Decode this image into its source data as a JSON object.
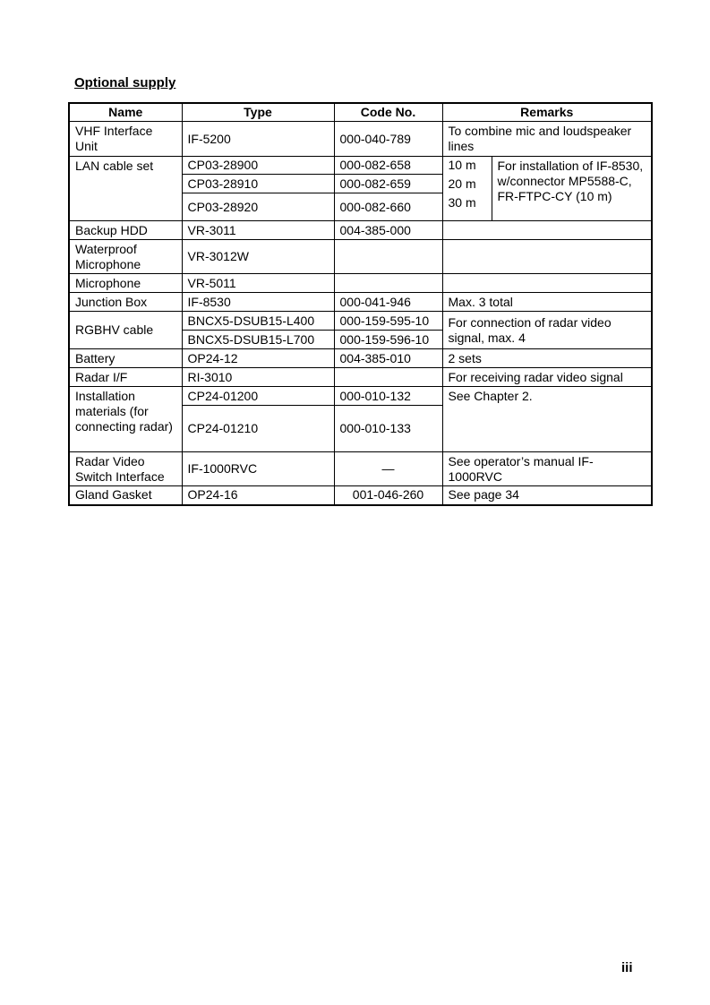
{
  "title": "Optional supply",
  "headers": {
    "name": "Name",
    "type": "Type",
    "code": "Code No.",
    "remarks": "Remarks"
  },
  "rows": {
    "vhf": {
      "name": "VHF Interface Unit",
      "type": "IF-5200",
      "code": "000-040-789",
      "remarks": "To combine mic and loudspeaker lines"
    },
    "lan": {
      "name": "LAN cable set",
      "items": [
        {
          "type": "CP03-28900",
          "code": "000-082-658",
          "length": "10 m"
        },
        {
          "type": "CP03-28910",
          "code": "000-082-659",
          "length": "20 m"
        },
        {
          "type": "CP03-28920",
          "code": "000-082-660",
          "length": "30 m"
        }
      ],
      "remarks": "For installation of IF-8530, w/connector MP5588-C, FR-FTPC-CY (10 m)"
    },
    "backup": {
      "name": "Backup HDD",
      "type": "VR-3011",
      "code": "004-385-000",
      "remarks": ""
    },
    "waterproof": {
      "name": "Waterproof Microphone",
      "type": "VR-3012W",
      "code": "",
      "remarks": ""
    },
    "mic": {
      "name": "Microphone",
      "type": "VR-5011",
      "code": "",
      "remarks": ""
    },
    "junction": {
      "name": "Junction Box",
      "type": "IF-8530",
      "code": "000-041-946",
      "remarks": "Max. 3 total"
    },
    "rgbhv": {
      "name": "RGBHV cable",
      "items": [
        {
          "type": "BNCX5-DSUB15-L400",
          "code": "000-159-595-10"
        },
        {
          "type": "BNCX5-DSUB15-L700",
          "code": "000-159-596-10"
        }
      ],
      "remarks": "For connection of radar video signal, max. 4"
    },
    "battery": {
      "name": "Battery",
      "type": "OP24-12",
      "code": "004-385-010",
      "remarks": "2 sets"
    },
    "radarif": {
      "name": "Radar I/F",
      "type": "RI-3010",
      "code": "",
      "remarks": "For receiving radar video signal"
    },
    "install": {
      "name": "Installation materials (for connecting radar)",
      "items": [
        {
          "type": "CP24-01200",
          "code": "000-010-132"
        },
        {
          "type": "CP24-01210",
          "code": "000-010-133"
        }
      ],
      "remarks": "See Chapter 2."
    },
    "rvsi": {
      "name": "Radar Video Switch Interface",
      "type": "IF-1000RVC",
      "code": "—",
      "remarks": "See operator’s manual IF-1000RVC"
    },
    "gland": {
      "name": "Gland Gasket",
      "type": "OP24-16",
      "code": "001-046-260",
      "remarks": "See page 34"
    }
  },
  "page_number": "iii"
}
